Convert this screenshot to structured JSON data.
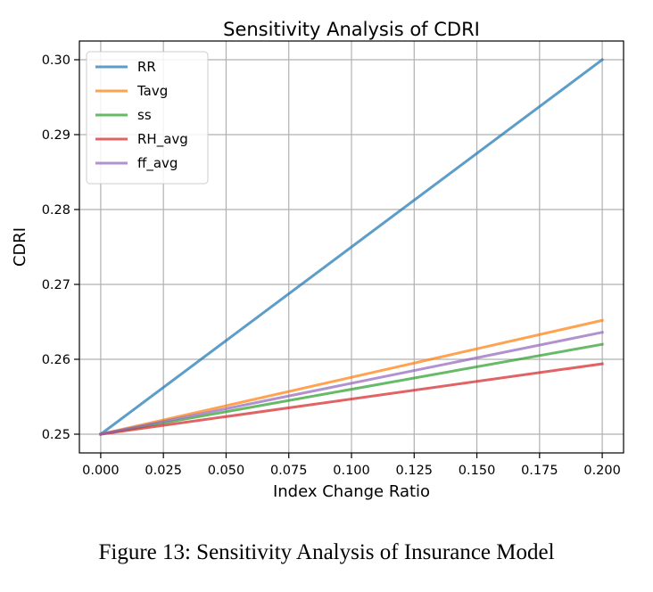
{
  "caption": "Figure 13: Sensitivity Analysis of Insurance Model",
  "chart_data": {
    "type": "line",
    "title": "Sensitivity Analysis of CDRI",
    "xlabel": "Index Change Ratio",
    "ylabel": "CDRI",
    "x": [
      0.0,
      0.2
    ],
    "xticks": [
      "0.000",
      "0.025",
      "0.050",
      "0.075",
      "0.100",
      "0.125",
      "0.150",
      "0.175",
      "0.200"
    ],
    "yticks": [
      "0.25",
      "0.26",
      "0.27",
      "0.28",
      "0.29",
      "0.30"
    ],
    "xlim": [
      -0.0085,
      0.2085
    ],
    "ylim": [
      0.2475,
      0.3025
    ],
    "grid": true,
    "legend_position": "top-left",
    "series": [
      {
        "name": "RR",
        "color": "#1f77b4",
        "values": [
          0.25,
          0.3
        ]
      },
      {
        "name": "Tavg",
        "color": "#ff7f0e",
        "values": [
          0.25,
          0.2652
        ]
      },
      {
        "name": "ss",
        "color": "#2ca02c",
        "values": [
          0.25,
          0.262
        ]
      },
      {
        "name": "RH_avg",
        "color": "#d62728",
        "values": [
          0.25,
          0.2594
        ]
      },
      {
        "name": "ff_avg",
        "color": "#9467bd",
        "values": [
          0.25,
          0.2636
        ]
      }
    ]
  }
}
